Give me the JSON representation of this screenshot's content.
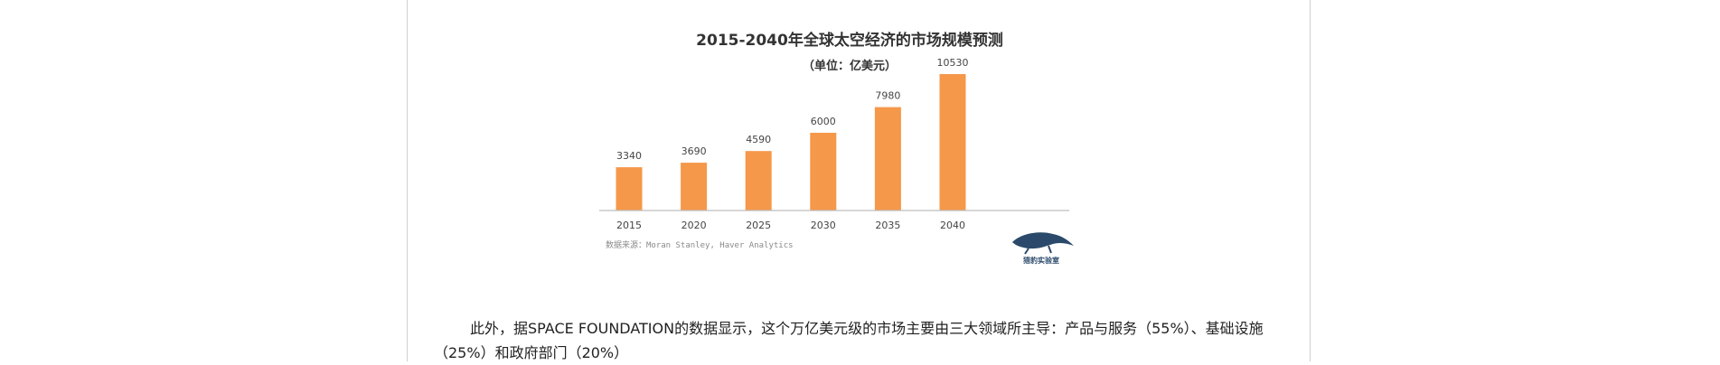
{
  "chart_data": {
    "type": "bar",
    "title": "2015-2040年全球太空经济的市场规模预测",
    "subtitle": "（单位：亿美元）",
    "categories": [
      "2015",
      "2020",
      "2025",
      "2030",
      "2035",
      "2040"
    ],
    "values": [
      3340,
      3690,
      4590,
      6000,
      7980,
      10530
    ],
    "data_labels": [
      "3340",
      "3690",
      "4590",
      "6000",
      "7980",
      "10530"
    ],
    "ylim": [
      0,
      10530
    ],
    "grid": false,
    "legend": "none",
    "source": "数据来源：Moran Stanley,  Haver Analytics",
    "colors": {
      "bar": "#f5984a",
      "title": "#333333",
      "label": "#444444",
      "axis": "#bdbdbd",
      "source": "#8a8a8a"
    }
  },
  "watermark": {
    "text": "猎豹实验室",
    "icon": "leopard-icon",
    "color": "#2b4a6b"
  },
  "article": {
    "paragraph": "此外，据SPACE FOUNDATION的数据显示，这个万亿美元级的市场主要由三大领域所主导：产品与服务（55%）、基础设施（25%）和政府部门（20%）"
  }
}
